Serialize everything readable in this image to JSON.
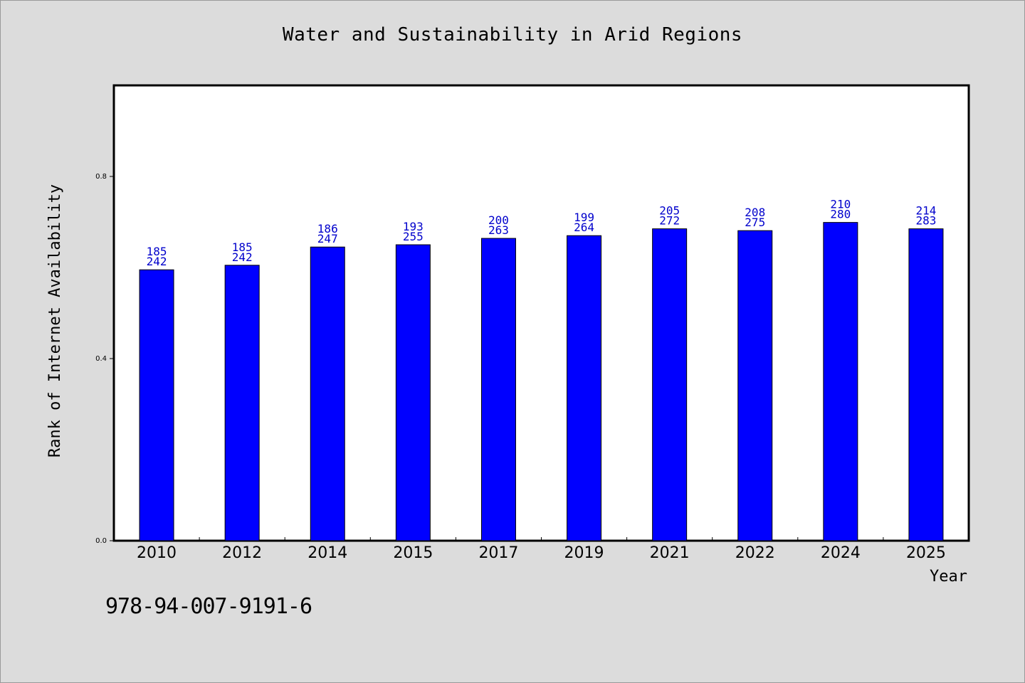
{
  "chart_data": {
    "type": "bar",
    "title": "Water and Sustainability in Arid Regions",
    "xlabel": "Year",
    "ylabel": "Rank of Internet Availability",
    "categories": [
      "2010",
      "2012",
      "2014",
      "2015",
      "2017",
      "2019",
      "2021",
      "2022",
      "2024",
      "2025"
    ],
    "values": [
      0.595,
      0.605,
      0.645,
      0.65,
      0.664,
      0.67,
      0.685,
      0.681,
      0.699,
      0.685
    ],
    "data_labels_top": [
      "185",
      "185",
      "186",
      "193",
      "200",
      "199",
      "205",
      "208",
      "210",
      "214"
    ],
    "data_labels_bottom": [
      "242",
      "242",
      "247",
      "255",
      "263",
      "264",
      "272",
      "275",
      "280",
      "283"
    ],
    "ylim": [
      0,
      1.0
    ],
    "yticks": [
      "0.0",
      "0.4",
      "0.8"
    ],
    "ytick_values": [
      0,
      0.4,
      0.8
    ],
    "grid": false,
    "colors": {
      "bar": "#0000ff",
      "label": "#0000cc",
      "background": "#dcdcdc",
      "plot": "#ffffff"
    }
  },
  "footer": {
    "code": "978-94-007-9191-6"
  }
}
